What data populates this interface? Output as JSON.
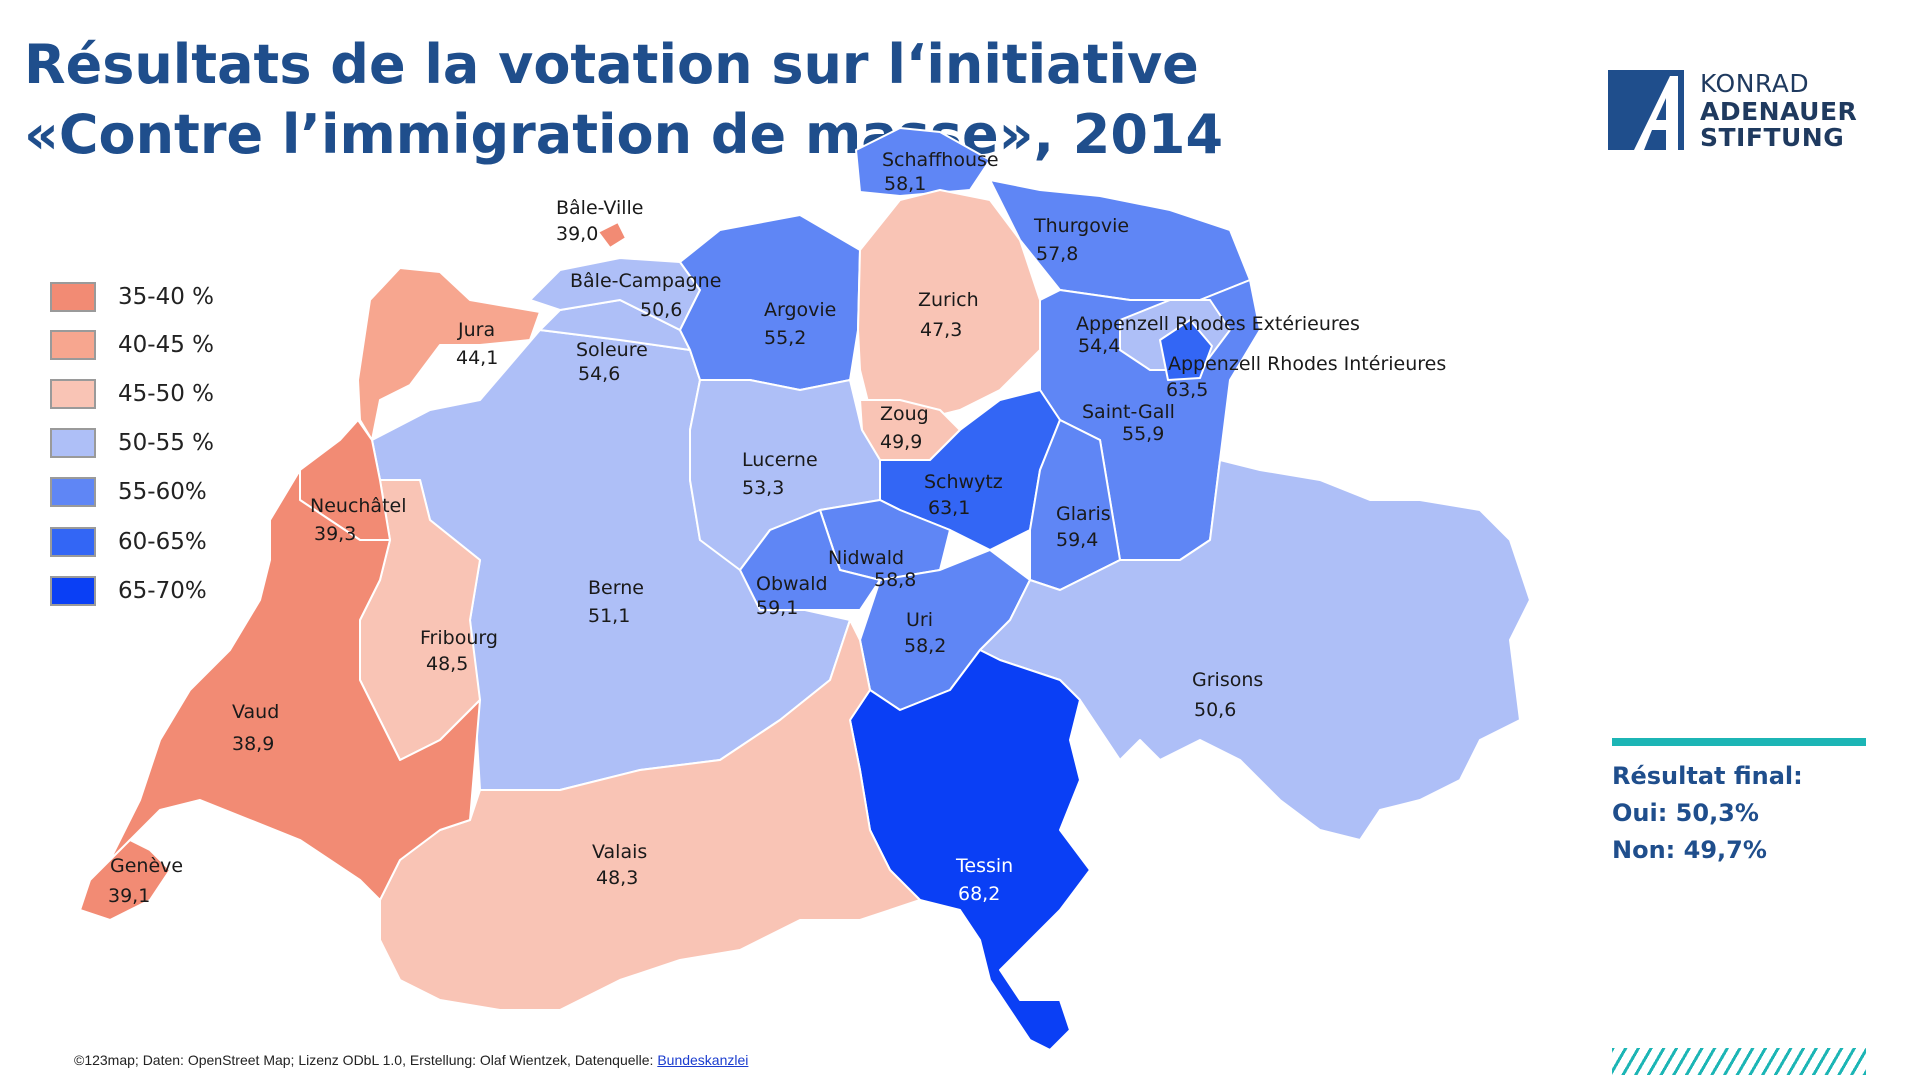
{
  "title": "Résultats de la votation sur l‘initiative «Contre l’immigration de masse», 2014",
  "logo": {
    "line1": "KONRAD",
    "line2": "ADENAUER",
    "line3": "STIFTUNG"
  },
  "legend": [
    {
      "label": "35-40 %",
      "color": "#f28b74"
    },
    {
      "label": "40-45 %",
      "color": "#f7a68f"
    },
    {
      "label": "45-50 %",
      "color": "#f9c4b5"
    },
    {
      "label": "50-55 %",
      "color": "#aebff7"
    },
    {
      "label": "55-60%",
      "color": "#5f86f5"
    },
    {
      "label": "60-65%",
      "color": "#3366f5"
    },
    {
      "label": "65-70%",
      "color": "#0a3ff5"
    }
  ],
  "cantons": [
    {
      "name": "Schaffhouse",
      "value": "58,1"
    },
    {
      "name": "Bâle-Ville",
      "value": "39,0"
    },
    {
      "name": "Bâle-Campagne",
      "value": "50,6"
    },
    {
      "name": "Argovie",
      "value": "55,2"
    },
    {
      "name": "Zurich",
      "value": "47,3"
    },
    {
      "name": "Thurgovie",
      "value": "57,8"
    },
    {
      "name": "Appenzell Rhodes Extérieures",
      "value": "54,4"
    },
    {
      "name": "Appenzell Rhodes Intérieures",
      "value": "63,5"
    },
    {
      "name": "Jura",
      "value": "44,1"
    },
    {
      "name": "Soleure",
      "value": "54,6"
    },
    {
      "name": "Zoug",
      "value": "49,9"
    },
    {
      "name": "Saint-Gall",
      "value": "55,9"
    },
    {
      "name": "Lucerne",
      "value": "53,3"
    },
    {
      "name": "Schwytz",
      "value": "63,1"
    },
    {
      "name": "Neuchâtel",
      "value": "39,3"
    },
    {
      "name": "Glaris",
      "value": "59,4"
    },
    {
      "name": "Nidwald",
      "value": "58,8"
    },
    {
      "name": "Obwald",
      "value": "59,1"
    },
    {
      "name": "Berne",
      "value": "51,1"
    },
    {
      "name": "Uri",
      "value": "58,2"
    },
    {
      "name": "Fribourg",
      "value": "48,5"
    },
    {
      "name": "Grisons",
      "value": "50,6"
    },
    {
      "name": "Vaud",
      "value": "38,9"
    },
    {
      "name": "Valais",
      "value": "48,3"
    },
    {
      "name": "Tessin",
      "value": "68,2"
    },
    {
      "name": "Genève",
      "value": "39,1"
    }
  ],
  "result": {
    "heading": "Résultat final:",
    "yes": "Oui: 50,3%",
    "no": "Non: 49,7%"
  },
  "footer": {
    "text": "©123map; Daten: OpenStreet Map; Lizenz ODbL 1.0, Erstellung: Olaf Wientzek, Datenquelle: ",
    "link": "Bundeskanzlei"
  }
}
